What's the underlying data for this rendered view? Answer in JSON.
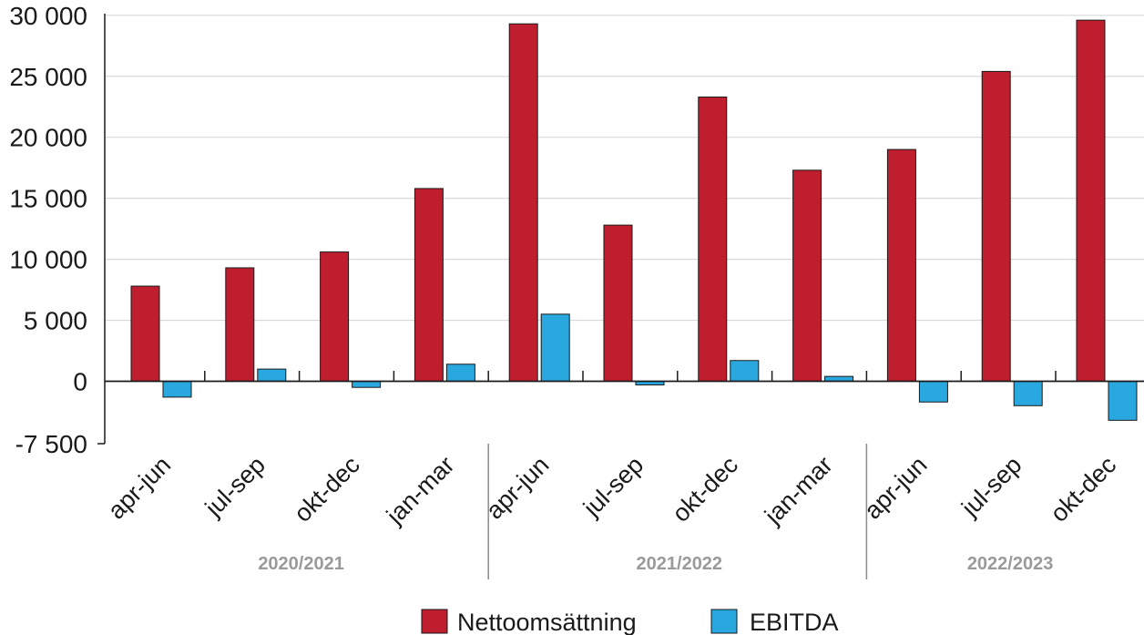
{
  "chart_data": {
    "type": "bar",
    "categories": [
      "apr-jun",
      "jul-sep",
      "okt-dec",
      "jan-mar",
      "apr-jun",
      "jul-sep",
      "okt-dec",
      "jan-mar",
      "apr-jun",
      "jul-sep",
      "okt-dec"
    ],
    "groups": [
      {
        "label": "2020/2021",
        "start": 0,
        "end": 3
      },
      {
        "label": "2021/2022",
        "start": 4,
        "end": 7
      },
      {
        "label": "2022/2023",
        "start": 8,
        "end": 10
      }
    ],
    "series": [
      {
        "name": "Nettoomsättning",
        "color": "#be1e2d",
        "values": [
          7800,
          9300,
          10600,
          15800,
          29300,
          12800,
          23300,
          17300,
          19000,
          25400,
          29600
        ]
      },
      {
        "name": "EBITDA",
        "color": "#29a8e0",
        "values": [
          -1300,
          1000,
          -500,
          1400,
          5500,
          -300,
          1700,
          400,
          -1700,
          -2000,
          -3200
        ]
      }
    ],
    "yticks": [
      -7500,
      0,
      5000,
      10000,
      15000,
      20000,
      25000,
      30000
    ],
    "ytick_labels": [
      "-7 500",
      "0",
      "5 000",
      "10 000",
      "15 000",
      "20 000",
      "25 000",
      "30 000"
    ],
    "ylim": [
      -5000,
      30000
    ],
    "grid": true,
    "legend_position": "bottom-center"
  }
}
